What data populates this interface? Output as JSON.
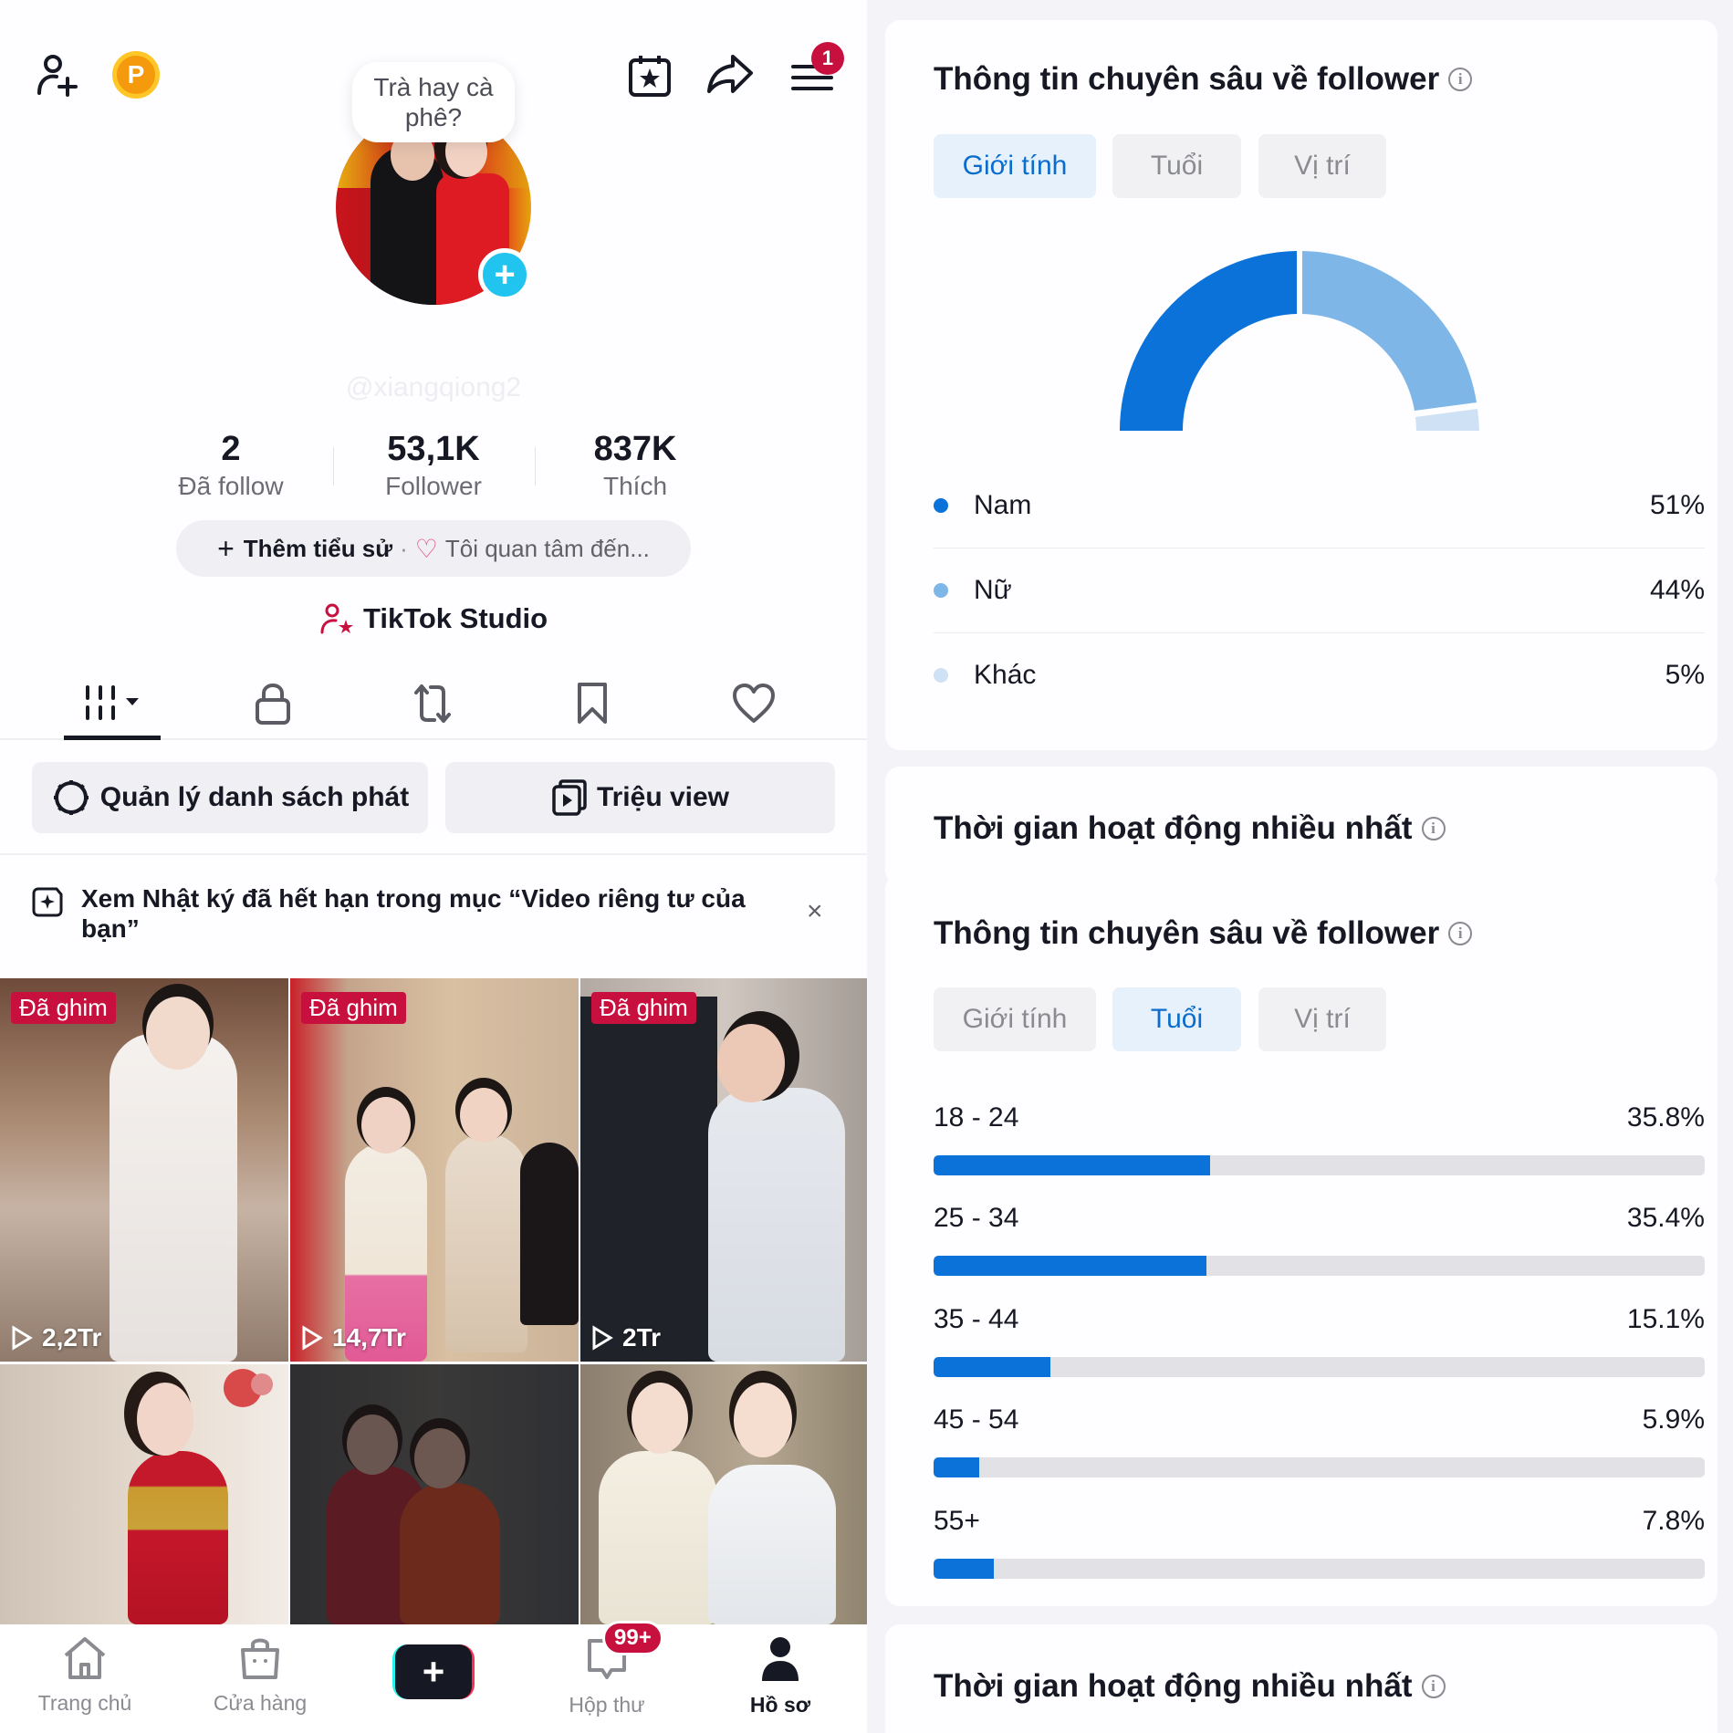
{
  "profile": {
    "bubble_text": "Trà hay cà phê?",
    "username": "@xiangqiong2",
    "coin_label": "P",
    "menu_badge": "1",
    "stats": [
      {
        "value": "2",
        "label": "Đã follow"
      },
      {
        "value": "53,1K",
        "label": "Follower"
      },
      {
        "value": "837K",
        "label": "Thích"
      }
    ],
    "bio": {
      "add_label": "Thêm tiểu sử",
      "separator": "·",
      "interest_placeholder": "Tôi quan tâm đến..."
    },
    "studio_label": "TikTok Studio",
    "tabs": [
      "videos-grid",
      "private",
      "reposts",
      "favorites",
      "liked"
    ],
    "actions": {
      "playlist_label": "Quản lý danh sách phát",
      "million_view_label": "Triệu view"
    },
    "notice": {
      "text": "Xem Nhật ký đã hết hạn trong mục “Video riêng tư của bạn”",
      "close": "×"
    },
    "videos": [
      {
        "pinned": "Đã ghim",
        "views": "2,2Tr"
      },
      {
        "pinned": "Đã ghim",
        "views": "14,7Tr"
      },
      {
        "pinned": "Đã ghim",
        "views": "2Tr"
      },
      {
        "pinned": "",
        "views": ""
      },
      {
        "pinned": "",
        "views": ""
      },
      {
        "pinned": "",
        "views": ""
      }
    ]
  },
  "bottom_nav": {
    "items": [
      {
        "label": "Trang chủ",
        "icon": "home-icon"
      },
      {
        "label": "Cửa hàng",
        "icon": "shop-icon"
      },
      {
        "label": "",
        "icon": "create-icon"
      },
      {
        "label": "Hộp thư",
        "icon": "inbox-icon",
        "badge": "99+"
      },
      {
        "label": "Hồ sơ",
        "icon": "profile-icon",
        "active": true
      }
    ],
    "create_symbol": "+"
  },
  "insights": {
    "follower_title": "Thông tin chuyên sâu về follower",
    "active_time_title": "Thời gian hoạt động nhiều nhất",
    "segments": [
      "Giới tính",
      "Tuổi",
      "Vị trí"
    ],
    "info_symbol": "i",
    "gender": [
      {
        "label": "Nam",
        "value": "51%",
        "color": "#0a72d8"
      },
      {
        "label": "Nữ",
        "value": "44%",
        "color": "#7fb6e8"
      },
      {
        "label": "Khác",
        "value": "5%",
        "color": "#cfe2f5"
      }
    ],
    "age": [
      {
        "label": "18 - 24",
        "value": "35.8%",
        "pct": 35.8
      },
      {
        "label": "25 - 34",
        "value": "35.4%",
        "pct": 35.4
      },
      {
        "label": "35 - 44",
        "value": "15.1%",
        "pct": 15.1
      },
      {
        "label": "45 - 54",
        "value": "5.9%",
        "pct": 5.9
      },
      {
        "label": "55+",
        "value": "7.8%",
        "pct": 7.8
      }
    ]
  },
  "colors": {
    "accent_blue": "#0a72d8",
    "badge_red": "#c8103e",
    "segment_active_bg": "#e6f1fc"
  },
  "chart_data": [
    {
      "type": "pie",
      "title": "Thông tin chuyên sâu về follower — Giới tính",
      "categories": [
        "Nam",
        "Nữ",
        "Khác"
      ],
      "values": [
        51,
        44,
        5
      ],
      "colors": [
        "#0a72d8",
        "#7fb6e8",
        "#cfe2f5"
      ],
      "style": "half-donut",
      "legend_position": "below"
    },
    {
      "type": "bar",
      "orientation": "horizontal",
      "title": "Thông tin chuyên sâu về follower — Tuổi",
      "categories": [
        "18 - 24",
        "25 - 34",
        "35 - 44",
        "45 - 54",
        "55+"
      ],
      "values": [
        35.8,
        35.4,
        15.1,
        5.9,
        7.8
      ],
      "unit": "%",
      "xlim": [
        0,
        100
      ],
      "grid": false
    }
  ]
}
